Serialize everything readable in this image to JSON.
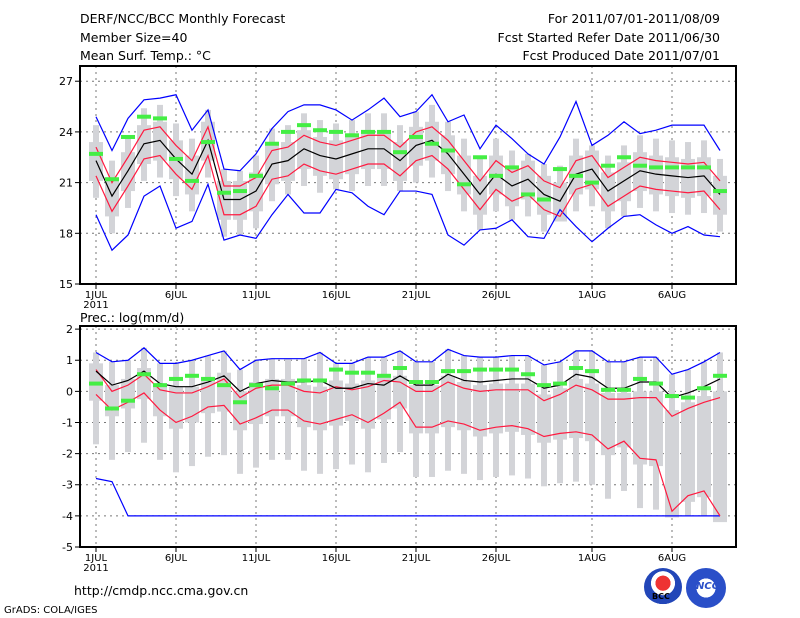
{
  "header": {
    "title": "DERF/NCC/BCC Monthly Forecast",
    "member_size": "Member Size=40",
    "variable": "Mean Surf. Temp.: °C",
    "period": "For 2011/07/01-2011/08/09",
    "started": "Fcst Started Refer Date 2011/06/30",
    "produced": "Fcst Produced Date 2011/07/01"
  },
  "footer": {
    "url": "http://cmdp.ncc.cma.gov.cn",
    "credit": "GrADS: COLA/IGES",
    "logo_left": "BCC",
    "logo_right": "NCC"
  },
  "colors": {
    "max_min": "#0000ff",
    "spread": "#ff1a40",
    "mean": "#000000",
    "obs": "#44ee44",
    "box": "#d3d4d8"
  },
  "chart_data": [
    {
      "type": "line",
      "title": "Mean Surf. Temp.: °C",
      "days": 40,
      "x_ticks": [
        {
          "day": 1,
          "label": "1JUL",
          "sub": "2011"
        },
        {
          "day": 6,
          "label": "6JUL"
        },
        {
          "day": 11,
          "label": "11JUL"
        },
        {
          "day": 16,
          "label": "16JUL"
        },
        {
          "day": 21,
          "label": "21JUL"
        },
        {
          "day": 26,
          "label": "26JUL"
        },
        {
          "day": 32,
          "label": "1AUG"
        },
        {
          "day": 37,
          "label": "6AUG"
        }
      ],
      "y_ticks": [
        {
          "v": 15,
          "label": "15"
        },
        {
          "v": 18,
          "label": "18"
        },
        {
          "v": 21,
          "label": "21"
        },
        {
          "v": 24,
          "label": "24"
        },
        {
          "v": 27,
          "label": "27"
        }
      ],
      "ylim": [
        15,
        27.9
      ],
      "grid": true,
      "series": {
        "max": [
          24.9,
          22.9,
          24.8,
          25.9,
          26.0,
          26.2,
          24.1,
          25.3,
          21.8,
          21.7,
          22.7,
          24.2,
          25.2,
          25.6,
          25.6,
          25.3,
          24.7,
          25.3,
          26.0,
          24.9,
          25.2,
          26.2,
          24.6,
          25.0,
          23.0,
          24.4,
          23.6,
          22.7,
          22.1,
          23.7,
          25.8,
          23.2,
          23.8,
          24.6,
          23.9,
          24.1,
          24.4,
          24.4,
          24.4,
          22.9
        ],
        "upper": [
          23.1,
          21.0,
          22.5,
          24.1,
          24.3,
          23.2,
          22.3,
          24.3,
          20.8,
          20.8,
          21.3,
          22.9,
          23.1,
          23.8,
          23.4,
          23.2,
          23.5,
          23.8,
          23.8,
          23.1,
          24.0,
          24.3,
          23.5,
          22.3,
          21.1,
          22.3,
          21.6,
          22.0,
          21.1,
          20.7,
          22.3,
          22.6,
          21.3,
          21.9,
          22.5,
          22.3,
          22.2,
          22.1,
          22.2,
          21.1
        ],
        "mean": [
          22.3,
          20.2,
          21.7,
          23.3,
          23.5,
          22.4,
          21.5,
          23.5,
          20.0,
          20.0,
          20.5,
          22.1,
          22.3,
          23.0,
          22.6,
          22.4,
          22.7,
          23.0,
          23.0,
          22.3,
          23.2,
          23.5,
          22.7,
          21.5,
          20.3,
          21.5,
          20.8,
          21.2,
          20.3,
          19.9,
          21.5,
          21.8,
          20.5,
          21.1,
          21.7,
          21.5,
          21.4,
          21.3,
          21.4,
          20.3
        ],
        "lower": [
          21.4,
          19.3,
          20.8,
          22.4,
          22.6,
          21.5,
          20.6,
          22.6,
          19.1,
          19.1,
          19.6,
          21.2,
          21.4,
          22.1,
          21.7,
          21.5,
          21.8,
          22.1,
          22.1,
          21.4,
          22.3,
          22.6,
          21.8,
          20.6,
          19.4,
          20.6,
          19.9,
          20.3,
          19.4,
          19.0,
          20.6,
          20.9,
          19.6,
          20.2,
          20.8,
          20.6,
          20.5,
          20.4,
          20.5,
          19.4
        ],
        "min": [
          19.1,
          17.0,
          17.9,
          20.2,
          20.8,
          18.3,
          18.7,
          20.9,
          17.6,
          17.9,
          17.7,
          19.1,
          20.3,
          19.2,
          19.2,
          20.6,
          20.4,
          19.6,
          19.1,
          20.5,
          20.5,
          20.3,
          17.9,
          17.3,
          18.2,
          18.3,
          18.8,
          17.8,
          17.7,
          19.4,
          18.4,
          17.5,
          18.3,
          19.0,
          19.1,
          18.5,
          18.0,
          18.4,
          17.9,
          17.8
        ],
        "observed": [
          22.7,
          21.2,
          23.7,
          24.9,
          24.8,
          22.4,
          21.1,
          23.4,
          20.4,
          20.5,
          21.4,
          23.3,
          24.0,
          24.4,
          24.1,
          24.0,
          23.8,
          24.0,
          24.0,
          22.8,
          23.7,
          23.3,
          22.9,
          20.9,
          22.5,
          21.4,
          21.9,
          20.3,
          20.0,
          21.8,
          21.4,
          21.0,
          22.0,
          22.5,
          22.0,
          21.9,
          21.9,
          21.9,
          21.9,
          20.5
        ]
      },
      "box_pad": 0.3,
      "whisker_pad": 1.3
    },
    {
      "type": "line",
      "title": "Prec.: log(mm/d)",
      "days": 40,
      "x_ticks": [
        {
          "day": 1,
          "label": "1JUL",
          "sub": "2011"
        },
        {
          "day": 6,
          "label": "6JUL"
        },
        {
          "day": 11,
          "label": "11JUL"
        },
        {
          "day": 16,
          "label": "16JUL"
        },
        {
          "day": 21,
          "label": "21JUL"
        },
        {
          "day": 26,
          "label": "26JUL"
        },
        {
          "day": 32,
          "label": "1AUG"
        },
        {
          "day": 37,
          "label": "6AUG"
        }
      ],
      "y_ticks": [
        {
          "v": -5,
          "label": "-5"
        },
        {
          "v": -4,
          "label": "-4"
        },
        {
          "v": -3,
          "label": "-3"
        },
        {
          "v": -2,
          "label": "-2"
        },
        {
          "v": -1,
          "label": "-1"
        },
        {
          "v": 0,
          "label": "0"
        },
        {
          "v": 1,
          "label": "1"
        },
        {
          "v": 2,
          "label": "2"
        }
      ],
      "ylim": [
        -5,
        2.1
      ],
      "grid": true,
      "series": {
        "max": [
          1.25,
          0.95,
          1.0,
          1.4,
          0.9,
          0.9,
          1.0,
          1.15,
          1.3,
          0.7,
          1.0,
          1.05,
          1.05,
          1.05,
          1.25,
          0.9,
          0.9,
          1.1,
          1.1,
          1.3,
          0.95,
          0.95,
          1.35,
          1.15,
          1.1,
          1.1,
          1.15,
          1.15,
          0.85,
          0.95,
          1.3,
          1.3,
          0.95,
          0.95,
          1.1,
          1.1,
          0.55,
          0.7,
          0.95,
          1.25
        ],
        "upper": [
          0.7,
          0.0,
          0.2,
          0.55,
          0.05,
          -0.05,
          -0.05,
          0.15,
          0.4,
          -0.2,
          0.1,
          0.2,
          0.2,
          0.0,
          -0.05,
          0.15,
          0.05,
          0.15,
          0.35,
          0.3,
          0.0,
          0.0,
          0.3,
          0.1,
          0.0,
          0.05,
          0.05,
          0.05,
          -0.3,
          -0.1,
          0.2,
          0.05,
          -0.25,
          -0.25,
          -0.2,
          -0.2,
          -0.8,
          -0.55,
          -0.35,
          -0.2
        ],
        "mean": [
          0.65,
          0.2,
          0.35,
          0.65,
          0.25,
          0.15,
          0.15,
          0.3,
          0.5,
          0.0,
          0.25,
          0.35,
          0.3,
          0.3,
          0.35,
          0.1,
          0.1,
          0.25,
          0.2,
          0.5,
          0.2,
          0.2,
          0.55,
          0.35,
          0.3,
          0.35,
          0.4,
          0.4,
          0.1,
          0.2,
          0.55,
          0.45,
          0.1,
          0.1,
          0.3,
          0.3,
          -0.2,
          -0.05,
          0.15,
          0.4
        ],
        "lower": [
          -0.1,
          -0.6,
          -0.35,
          -0.05,
          -0.6,
          -1.0,
          -0.8,
          -0.5,
          -0.45,
          -1.05,
          -0.85,
          -0.6,
          -0.6,
          -0.95,
          -1.05,
          -0.9,
          -0.75,
          -1.0,
          -0.7,
          -0.35,
          -1.15,
          -1.15,
          -0.95,
          -1.05,
          -1.25,
          -1.15,
          -1.1,
          -1.2,
          -1.45,
          -1.35,
          -1.3,
          -1.4,
          -1.85,
          -1.6,
          -2.15,
          -2.2,
          -3.85,
          -3.35,
          -3.2,
          -4.0
        ],
        "min": [
          -2.8,
          -2.9,
          -4,
          -4,
          -4,
          -4,
          -4,
          -4,
          -4,
          -4,
          -4,
          -4,
          -4,
          -4,
          -4,
          -4,
          -4,
          -4,
          -4,
          -4,
          -4,
          -4,
          -4,
          -4,
          -4,
          -4,
          -4,
          -4,
          -4,
          -4,
          -4,
          -4,
          -4,
          -4,
          -4,
          -4,
          -4,
          -4,
          -4,
          -4
        ],
        "observed": [
          0.25,
          -0.55,
          -0.3,
          0.55,
          0.2,
          0.4,
          0.5,
          0.4,
          0.2,
          -0.35,
          0.2,
          0.1,
          0.25,
          0.35,
          0.35,
          0.7,
          0.6,
          0.6,
          0.5,
          0.75,
          0.3,
          0.3,
          0.65,
          0.65,
          0.7,
          0.7,
          0.7,
          0.55,
          0.2,
          0.25,
          0.75,
          0.65,
          0.05,
          0.05,
          0.4,
          0.25,
          -0.15,
          -0.2,
          0.1,
          0.5
        ]
      },
      "box_pad": 0.2,
      "whisker_pad": 1.6
    }
  ]
}
